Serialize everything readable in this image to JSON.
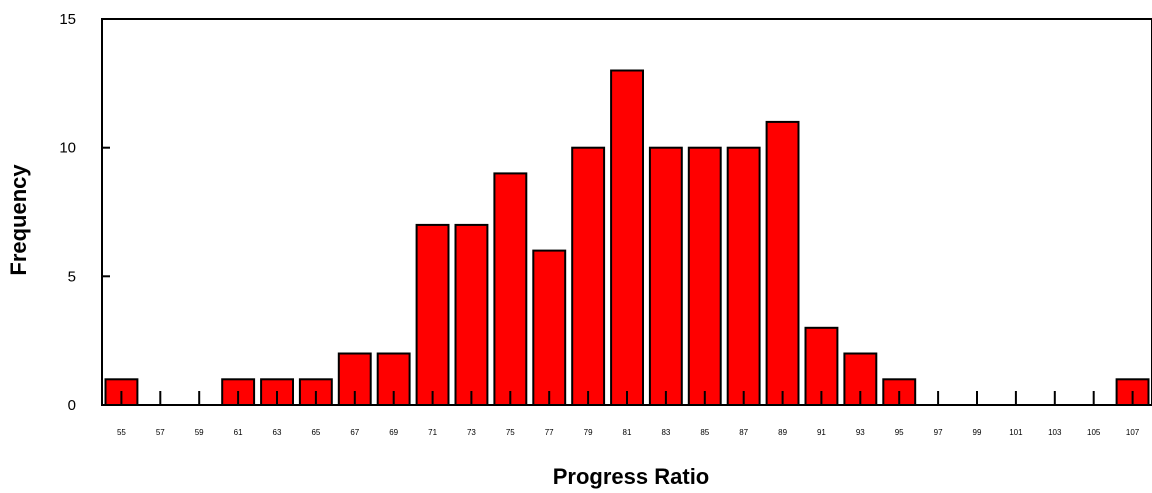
{
  "chart_data": {
    "type": "bar",
    "title": "",
    "xlabel": "Progress Ratio",
    "ylabel": "Frequency",
    "categories": [
      "55",
      "57",
      "59",
      "61",
      "63",
      "65",
      "67",
      "69",
      "71",
      "73",
      "75",
      "77",
      "79",
      "81",
      "83",
      "85",
      "87",
      "89",
      "91",
      "93",
      "95",
      "97",
      "99",
      "101",
      "103",
      "105",
      "107"
    ],
    "values": [
      1,
      0,
      0,
      1,
      1,
      1,
      2,
      2,
      7,
      7,
      9,
      6,
      10,
      13,
      10,
      10,
      10,
      11,
      3,
      2,
      1,
      0,
      0,
      0,
      0,
      0,
      1
    ],
    "ylim": [
      0,
      15
    ],
    "yticks": [
      0,
      5,
      10,
      15
    ],
    "grid": false,
    "bar_color": "#ff0000",
    "bar_edge_color": "#000000"
  }
}
